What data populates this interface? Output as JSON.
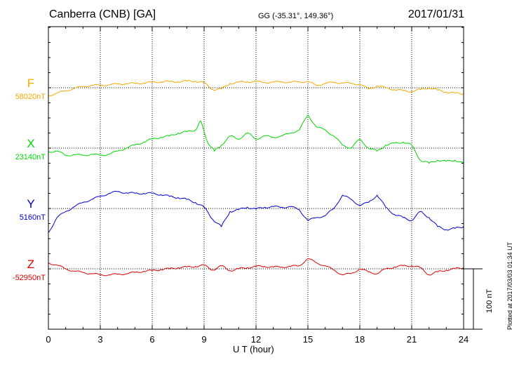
{
  "header": {
    "station": "Canberra (CNB)  [GA]",
    "coords": "GG (-35.31°, 149.36°)",
    "date": "2017/01/31"
  },
  "footer": {
    "plotted": "Plotted at 2017/03/03 01:34 UT"
  },
  "scale_label": "100 nT",
  "colors": {
    "F": "#f5a800",
    "X": "#00d800",
    "Y": "#0000d0",
    "Z": "#e00000",
    "grid": "#000000"
  },
  "chart_data": {
    "type": "line",
    "xlabel": "U T (hour)",
    "xlim": [
      0,
      24
    ],
    "xticks": [
      "0",
      "3",
      "6",
      "9",
      "12",
      "15",
      "18",
      "21",
      "24"
    ],
    "ylabel": "",
    "scale_bar_nT": 100,
    "series": [
      {
        "name": "F",
        "baseline": "58020nT",
        "baseline_nT": 58020,
        "x": [
          0,
          0.5,
          1,
          1.5,
          2,
          2.5,
          3,
          3.5,
          4,
          4.5,
          5,
          5.5,
          6,
          6.5,
          7,
          7.5,
          8,
          8.5,
          9,
          9.5,
          10,
          10.5,
          11,
          11.5,
          12,
          12.5,
          13,
          13.5,
          14,
          14.5,
          15,
          15.5,
          16,
          16.5,
          17,
          17.5,
          18,
          18.5,
          19,
          19.5,
          20,
          20.5,
          21,
          21.5,
          22,
          22.5,
          23,
          23.5,
          24
        ],
        "values": [
          -13,
          -9,
          -5,
          -1,
          2,
          4,
          4,
          5,
          6,
          7,
          7,
          8,
          9,
          10,
          10,
          10,
          11,
          11,
          8,
          -3,
          -2,
          7,
          9,
          10,
          10,
          9,
          9,
          10,
          9,
          10,
          10,
          4,
          7,
          9,
          8,
          7,
          6,
          -2,
          3,
          0,
          -3,
          -5,
          -6,
          -3,
          0,
          -4,
          -7,
          -9,
          -10
        ]
      },
      {
        "name": "X",
        "baseline": "23140nT",
        "baseline_nT": 23140,
        "x": [
          0,
          0.5,
          1,
          1.5,
          2,
          2.5,
          3,
          3.5,
          4,
          4.5,
          5,
          5.5,
          6,
          6.5,
          7,
          7.5,
          8,
          8.5,
          8.8,
          9.2,
          9.6,
          10,
          10.5,
          11,
          11.5,
          12,
          12.5,
          13,
          13.5,
          14,
          14.5,
          15,
          15.5,
          16,
          16.5,
          17,
          17.5,
          18,
          18.5,
          19,
          19.5,
          20,
          20.5,
          21,
          21.5,
          22,
          22.5,
          23,
          23.5,
          24
        ],
        "values": [
          -6,
          -5,
          -12,
          -11,
          -12,
          -10,
          -12,
          -10,
          -5,
          0,
          5,
          10,
          15,
          18,
          20,
          25,
          27,
          30,
          45,
          10,
          -5,
          5,
          20,
          15,
          25,
          15,
          20,
          18,
          20,
          25,
          30,
          55,
          35,
          30,
          20,
          5,
          0,
          15,
          0,
          -5,
          5,
          8,
          10,
          5,
          -20,
          -25,
          -20,
          -22,
          -20,
          -25
        ]
      },
      {
        "name": "Y",
        "baseline": "5160nT",
        "baseline_nT": 5160,
        "x": [
          0,
          0.5,
          1,
          1.5,
          2,
          2.5,
          3,
          3.5,
          4,
          4.5,
          5,
          5.5,
          6,
          6.5,
          7,
          7.5,
          8,
          8.5,
          9,
          9.5,
          10,
          10.5,
          11,
          11.5,
          12,
          12.5,
          13,
          13.5,
          14,
          14.5,
          15,
          15.5,
          16,
          16.5,
          17,
          17.5,
          18,
          18.5,
          19,
          19.5,
          20,
          20.5,
          21,
          21.5,
          22,
          22.5,
          23,
          23.5,
          24
        ],
        "values": [
          -40,
          -15,
          -5,
          3,
          10,
          15,
          20,
          25,
          28,
          26,
          25,
          25,
          25,
          23,
          20,
          18,
          15,
          10,
          2,
          -18,
          -30,
          -5,
          -2,
          2,
          -1,
          2,
          3,
          2,
          3,
          -2,
          -20,
          -15,
          -12,
          0,
          22,
          15,
          5,
          10,
          22,
          2,
          -10,
          -15,
          -20,
          -5,
          -15,
          -30,
          -35,
          -33,
          -30
        ]
      },
      {
        "name": "Z",
        "baseline": "-52950nT",
        "baseline_nT": -52950,
        "x": [
          0,
          0.5,
          1,
          1.5,
          2,
          2.5,
          3,
          3.5,
          4,
          4.5,
          5,
          5.5,
          6,
          6.5,
          7,
          7.5,
          8,
          8.5,
          9,
          9.5,
          10,
          10.5,
          11,
          11.5,
          12,
          12.5,
          13,
          13.5,
          14,
          14.5,
          15,
          15.5,
          16,
          16.5,
          17,
          17.5,
          18,
          18.5,
          19,
          19.5,
          20,
          20.5,
          21,
          21.5,
          22,
          22.5,
          23,
          23.5,
          24
        ],
        "values": [
          10,
          6,
          0,
          -4,
          -6,
          -8,
          -10,
          -10,
          -9,
          -8,
          -6,
          -4,
          -3,
          -1,
          0,
          2,
          3,
          4,
          6,
          -2,
          5,
          -3,
          0,
          2,
          4,
          4,
          3,
          3,
          4,
          5,
          17,
          10,
          5,
          -2,
          -10,
          -8,
          0,
          -5,
          -8,
          0,
          3,
          5,
          5,
          2,
          -10,
          -5,
          -2,
          0,
          2
        ]
      }
    ]
  }
}
